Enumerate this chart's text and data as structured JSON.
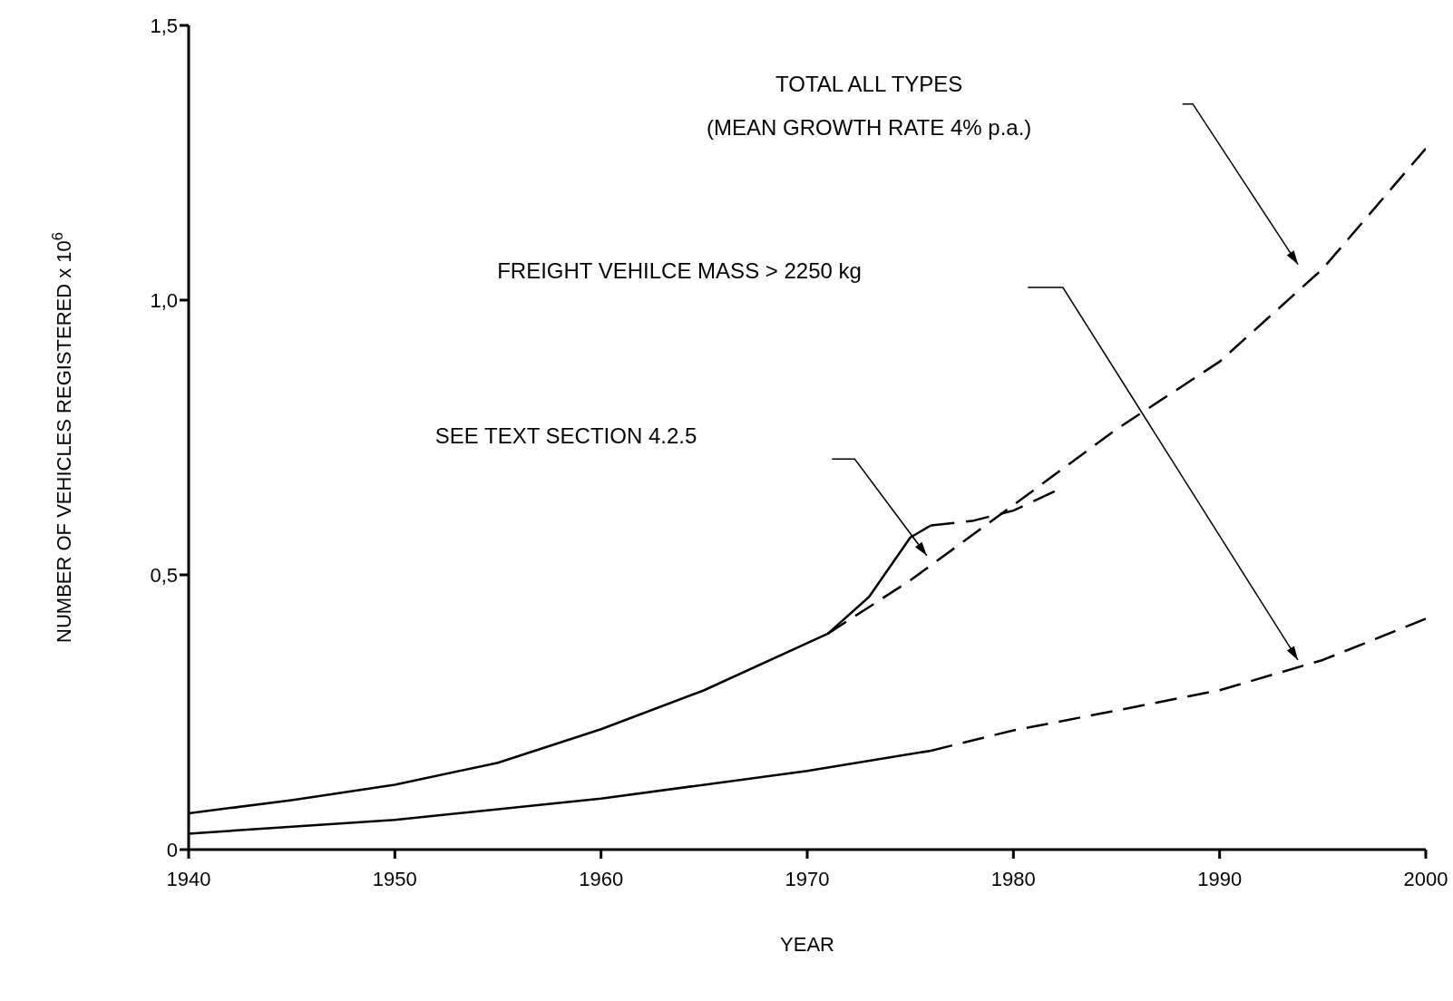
{
  "chart_data": {
    "type": "line",
    "xlabel": "YEAR",
    "ylabel": "NUMBER OF VEHICLES REGISTERED x 10$^{6}$",
    "xlim": [
      1940,
      2000
    ],
    "xticks": [
      1940,
      1950,
      1960,
      1970,
      1980,
      1990,
      2000
    ],
    "ylim": [
      0,
      1.5
    ],
    "yticks": [
      0,
      {
        "value": 0.5,
        "label": "0,5"
      },
      {
        "value": 1.0,
        "label": "1,0"
      },
      {
        "value": 1.5,
        "label": "1,5"
      }
    ],
    "grid": false,
    "legend": false,
    "marker": "none",
    "series": [
      {
        "color": "#000000",
        "line_style": "solid",
        "x": [
          1940,
          1945,
          1950,
          1955,
          1960,
          1965,
          1971,
          1973,
          1975,
          1976
        ],
        "values": [
          0.066,
          0.09,
          0.118,
          0.158,
          0.219,
          0.29,
          0.393,
          0.46,
          0.568,
          0.59
        ]
      },
      {
        "color": "#000000",
        "line_style": "dashed",
        "x": [
          1971,
          1975,
          1980,
          1985,
          1990,
          1995,
          2000
        ],
        "values": [
          0.393,
          0.49,
          0.627,
          0.765,
          0.888,
          1.057,
          1.276
        ]
      },
      {
        "color": "#000000",
        "line_style": "dashed",
        "x": [
          1976,
          1978,
          1980,
          1982
        ],
        "values": [
          0.59,
          0.598,
          0.617,
          0.652
        ]
      },
      {
        "color": "#000000",
        "line_style": "solid",
        "x": [
          1940,
          1950,
          1960,
          1970,
          1976
        ],
        "values": [
          0.029,
          0.054,
          0.093,
          0.143,
          0.18
        ]
      },
      {
        "color": "#000000",
        "line_style": "dashed",
        "x": [
          1976,
          1980,
          1985,
          1990,
          1995,
          2000
        ],
        "values": [
          0.18,
          0.217,
          0.253,
          0.29,
          0.345,
          0.42
        ]
      }
    ],
    "annotations": [
      "TOTAL ALL TYPES",
      "(MEAN GROWTH RATE 4% p.a.)",
      "FREIGHT VEHILCE MASS > 2250 kg",
      "SEE TEXT SECTION 4.2.5"
    ]
  }
}
